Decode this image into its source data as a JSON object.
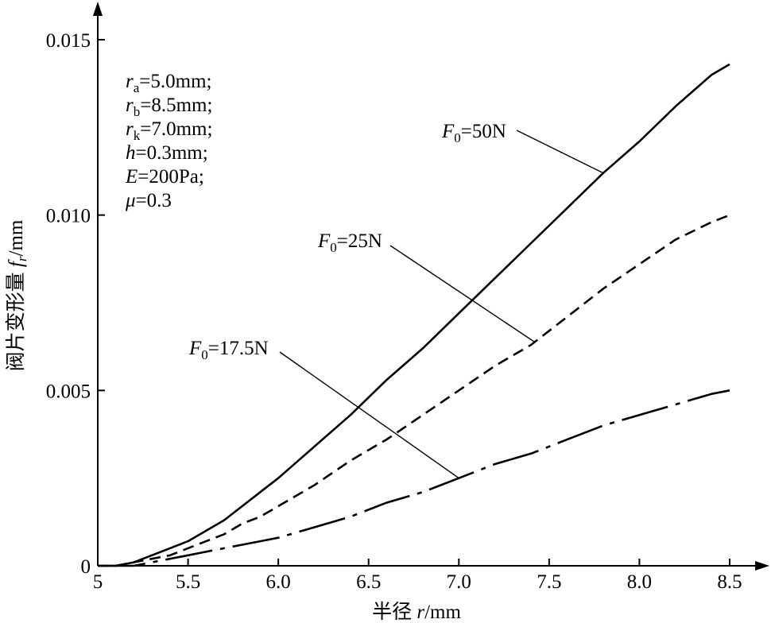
{
  "chart_data": {
    "type": "line",
    "xlabel": "半径 r/mm",
    "ylabel": "阀片变形量 fr/mm",
    "xlabel_parts": {
      "prefix": "半径 ",
      "var": "r",
      "suffix": "/mm"
    },
    "ylabel_parts": {
      "prefix": "阀片变形量 ",
      "var": "f",
      "sub": "r",
      "suffix": "/mm"
    },
    "xlim": [
      5.0,
      8.5
    ],
    "ylim": [
      0,
      0.015
    ],
    "x_ticks": [
      5.0,
      5.5,
      6.0,
      6.5,
      7.0,
      7.5,
      8.0,
      8.5
    ],
    "x_tick_labels": [
      "5",
      "5.5",
      "6.0",
      "6.5",
      "7.0",
      "7.5",
      "8.0",
      "8.5"
    ],
    "y_ticks": [
      0,
      0.005,
      0.01,
      0.015
    ],
    "y_tick_labels": [
      "0",
      "0.005",
      "0.010",
      "0.015"
    ],
    "grid": false,
    "parameters": [
      {
        "var": "r",
        "sub": "a",
        "text": "=5.0mm;"
      },
      {
        "var": "r",
        "sub": "b",
        "text": "=8.5mm;"
      },
      {
        "var": "r",
        "sub": "k",
        "text": "=7.0mm;"
      },
      {
        "var": "h",
        "sub": "",
        "text": "=0.3mm;"
      },
      {
        "var": "E",
        "sub": "",
        "text": "=200Pa;"
      },
      {
        "var": "μ",
        "sub": "",
        "text": "=0.3"
      }
    ],
    "series": [
      {
        "name": "F0=50N",
        "label_var": "F",
        "label_sub": "0",
        "label_value": "=50N",
        "style": "solid",
        "x": [
          5.0,
          5.1,
          5.2,
          5.3,
          5.4,
          5.5,
          5.6,
          5.7,
          5.8,
          5.9,
          6.0,
          6.2,
          6.4,
          6.6,
          6.8,
          7.0,
          7.2,
          7.4,
          7.6,
          7.8,
          8.0,
          8.2,
          8.4,
          8.5
        ],
        "y": [
          0.0,
          0.0,
          0.0001,
          0.0003,
          0.0005,
          0.0007,
          0.001,
          0.0013,
          0.0017,
          0.0021,
          0.0025,
          0.0034,
          0.0043,
          0.0053,
          0.0062,
          0.0072,
          0.0082,
          0.0092,
          0.0102,
          0.0112,
          0.0121,
          0.0131,
          0.014,
          0.0143
        ]
      },
      {
        "name": "F0=25N",
        "label_var": "F",
        "label_sub": "0",
        "label_value": "=25N",
        "style": "dashed",
        "x": [
          5.0,
          5.1,
          5.2,
          5.3,
          5.4,
          5.5,
          5.6,
          5.7,
          5.8,
          5.9,
          6.0,
          6.2,
          6.4,
          6.6,
          6.8,
          7.0,
          7.2,
          7.4,
          7.6,
          7.8,
          8.0,
          8.2,
          8.4,
          8.5
        ],
        "y": [
          0.0,
          0.0,
          0.0001,
          0.0002,
          0.0003,
          0.0005,
          0.0007,
          0.0009,
          0.0012,
          0.0014,
          0.0017,
          0.0023,
          0.003,
          0.0036,
          0.0043,
          0.005,
          0.0057,
          0.0063,
          0.0071,
          0.0079,
          0.0086,
          0.0093,
          0.0098,
          0.01
        ]
      },
      {
        "name": "F0=17.5N",
        "label_var": "F",
        "label_sub": "0",
        "label_value": "=17.5N",
        "style": "dashdot",
        "x": [
          5.0,
          5.1,
          5.2,
          5.3,
          5.4,
          5.5,
          5.6,
          5.7,
          5.8,
          5.9,
          6.0,
          6.2,
          6.4,
          6.6,
          6.8,
          7.0,
          7.2,
          7.4,
          7.6,
          7.8,
          8.0,
          8.2,
          8.4,
          8.5
        ],
        "y": [
          0.0,
          0.0,
          0.0,
          0.0001,
          0.0002,
          0.0003,
          0.0004,
          0.0005,
          0.0006,
          0.0007,
          0.0008,
          0.0011,
          0.0014,
          0.0018,
          0.0021,
          0.0025,
          0.0029,
          0.0032,
          0.0036,
          0.004,
          0.0043,
          0.0046,
          0.0049,
          0.005
        ]
      }
    ]
  }
}
